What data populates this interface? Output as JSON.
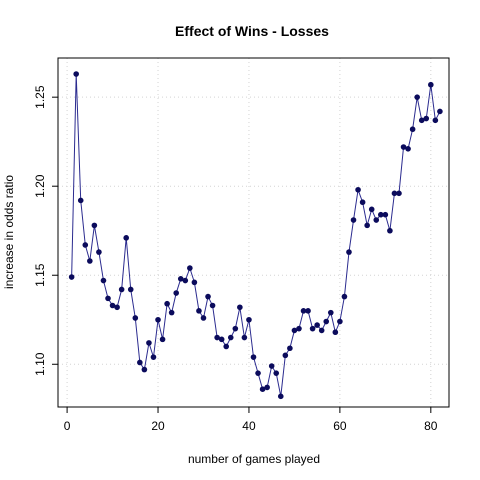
{
  "chart_data": {
    "type": "line",
    "title": "Effect of Wins - Losses",
    "xlabel": "number of games played",
    "ylabel": "increase in odds ratio",
    "xlim": [
      -2,
      84
    ],
    "ylim": [
      1.076,
      1.272
    ],
    "xticks": [
      0,
      20,
      40,
      60,
      80
    ],
    "yticks": [
      1.1,
      1.15,
      1.2,
      1.25
    ],
    "ytick_labels": [
      "1.10",
      "1.15",
      "1.20",
      "1.25"
    ],
    "grid": true,
    "line_color": "#2b2b8f",
    "point_color": "#0b0b5c",
    "series": [
      {
        "x": [
          1,
          2,
          3,
          4,
          5,
          6,
          7,
          8,
          9,
          10,
          11,
          12,
          13,
          14,
          15,
          16,
          17,
          18,
          19,
          20,
          21,
          22,
          23,
          24,
          25,
          26,
          27,
          28,
          29,
          30,
          31,
          32,
          33,
          34,
          35,
          36,
          37,
          38,
          39,
          40,
          41,
          42,
          43,
          44,
          45,
          46,
          47,
          48,
          49,
          50,
          51,
          52,
          53,
          54,
          55,
          56,
          57,
          58,
          59,
          60,
          61,
          62,
          63,
          64,
          65,
          66,
          67,
          68,
          69,
          70,
          71,
          72,
          73,
          74,
          75,
          76,
          77,
          78,
          79,
          80,
          81,
          82
        ],
        "y": [
          1.149,
          1.263,
          1.192,
          1.167,
          1.158,
          1.178,
          1.163,
          1.147,
          1.137,
          1.133,
          1.132,
          1.142,
          1.171,
          1.142,
          1.126,
          1.101,
          1.097,
          1.112,
          1.104,
          1.125,
          1.114,
          1.134,
          1.129,
          1.14,
          1.148,
          1.147,
          1.154,
          1.146,
          1.13,
          1.126,
          1.138,
          1.133,
          1.115,
          1.114,
          1.11,
          1.115,
          1.12,
          1.132,
          1.115,
          1.125,
          1.104,
          1.095,
          1.086,
          1.087,
          1.099,
          1.095,
          1.082,
          1.105,
          1.109,
          1.119,
          1.12,
          1.13,
          1.13,
          1.12,
          1.122,
          1.119,
          1.124,
          1.129,
          1.118,
          1.124,
          1.138,
          1.163,
          1.181,
          1.198,
          1.191,
          1.178,
          1.187,
          1.181,
          1.184,
          1.184,
          1.175,
          1.196,
          1.196,
          1.222,
          1.221,
          1.232,
          1.25,
          1.237,
          1.238,
          1.257,
          1.237,
          1.242
        ]
      }
    ]
  }
}
